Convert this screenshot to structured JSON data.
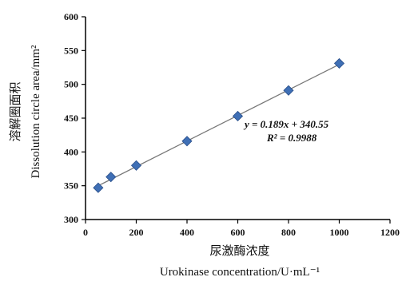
{
  "chart_data": {
    "type": "scatter",
    "title": "",
    "xlabel_cn": "尿激酶浓度",
    "xlabel_en": "Urokinase concentration/U·mL⁻¹",
    "ylabel_cn": "溶解圈面积",
    "ylabel_en": "Dissolution circle area/mm²",
    "xlim": [
      0,
      1200
    ],
    "ylim": [
      300,
      600
    ],
    "xticks": [
      0,
      200,
      400,
      600,
      800,
      1000,
      1200
    ],
    "yticks": [
      300,
      350,
      400,
      450,
      500,
      550,
      600
    ],
    "grid": false,
    "marker_color": "#3f6fb5",
    "line_color": "#777777",
    "series": [
      {
        "x": [
          50,
          100,
          200,
          400,
          600,
          800,
          1000
        ],
        "y": [
          347,
          363,
          380,
          416,
          453,
          491,
          531
        ]
      }
    ],
    "trendline": {
      "slope": 0.189,
      "intercept": 340.55,
      "x_range": [
        45,
        1000
      ]
    },
    "annotations": {
      "equation": "y = 0.189x + 340.55",
      "r2": "R² = 0.9988"
    }
  }
}
